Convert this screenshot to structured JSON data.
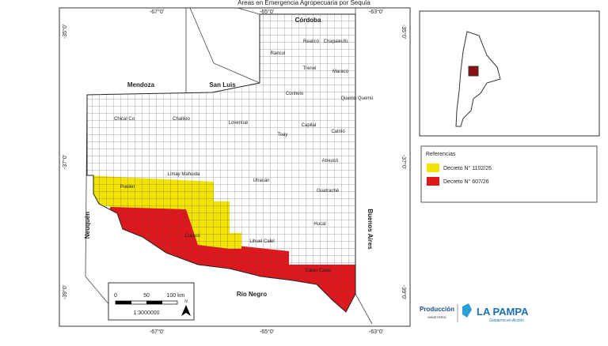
{
  "title": "Áreas en Emergencia Agropecuaria por Sequía",
  "coords": {
    "top": [
      "-67°0'",
      "-65°0'",
      "-63°0'"
    ],
    "bottom": [
      "-67°0'",
      "-65°0'",
      "-63°0'"
    ],
    "left": [
      "-35°0'",
      "-37°0'",
      "-39°0'"
    ],
    "right": [
      "-35°0'",
      "-37°0'",
      "-39°0'"
    ]
  },
  "provinces": [
    "Córdoba",
    "Mendoza",
    "San Luis",
    "Neuquén",
    "Río Negro",
    "Buenos Aires"
  ],
  "departments": [
    "Realicó",
    "Chapaleufú",
    "Rancul",
    "Trenel",
    "Maracó",
    "Conhelo",
    "Quemú Quemú",
    "Chical Co",
    "Chalileo",
    "Loventué",
    "Toay",
    "Capital",
    "Catriló",
    "Atreucó",
    "Limay Mahuida",
    "Puelén",
    "Utracán",
    "Guatraché",
    "Hucal",
    "Curacó",
    "Lihuel Calel",
    "Caleu Caleu"
  ],
  "legend": {
    "title": "Referencias",
    "items": [
      {
        "label": "Decreto N° 1102/26",
        "color": "#f2e400"
      },
      {
        "label": "Decreto N° 607/26",
        "color": "#e0161b"
      }
    ]
  },
  "scale": {
    "labels": [
      "0",
      "50",
      "100 km"
    ],
    "ratio": "1:3000000",
    "north": "N"
  },
  "logo": {
    "ministry": "Producción",
    "ministry_sub": "MINISTERIO",
    "province": "LA PAMPA",
    "slogan": "Gobierno en Acción"
  }
}
